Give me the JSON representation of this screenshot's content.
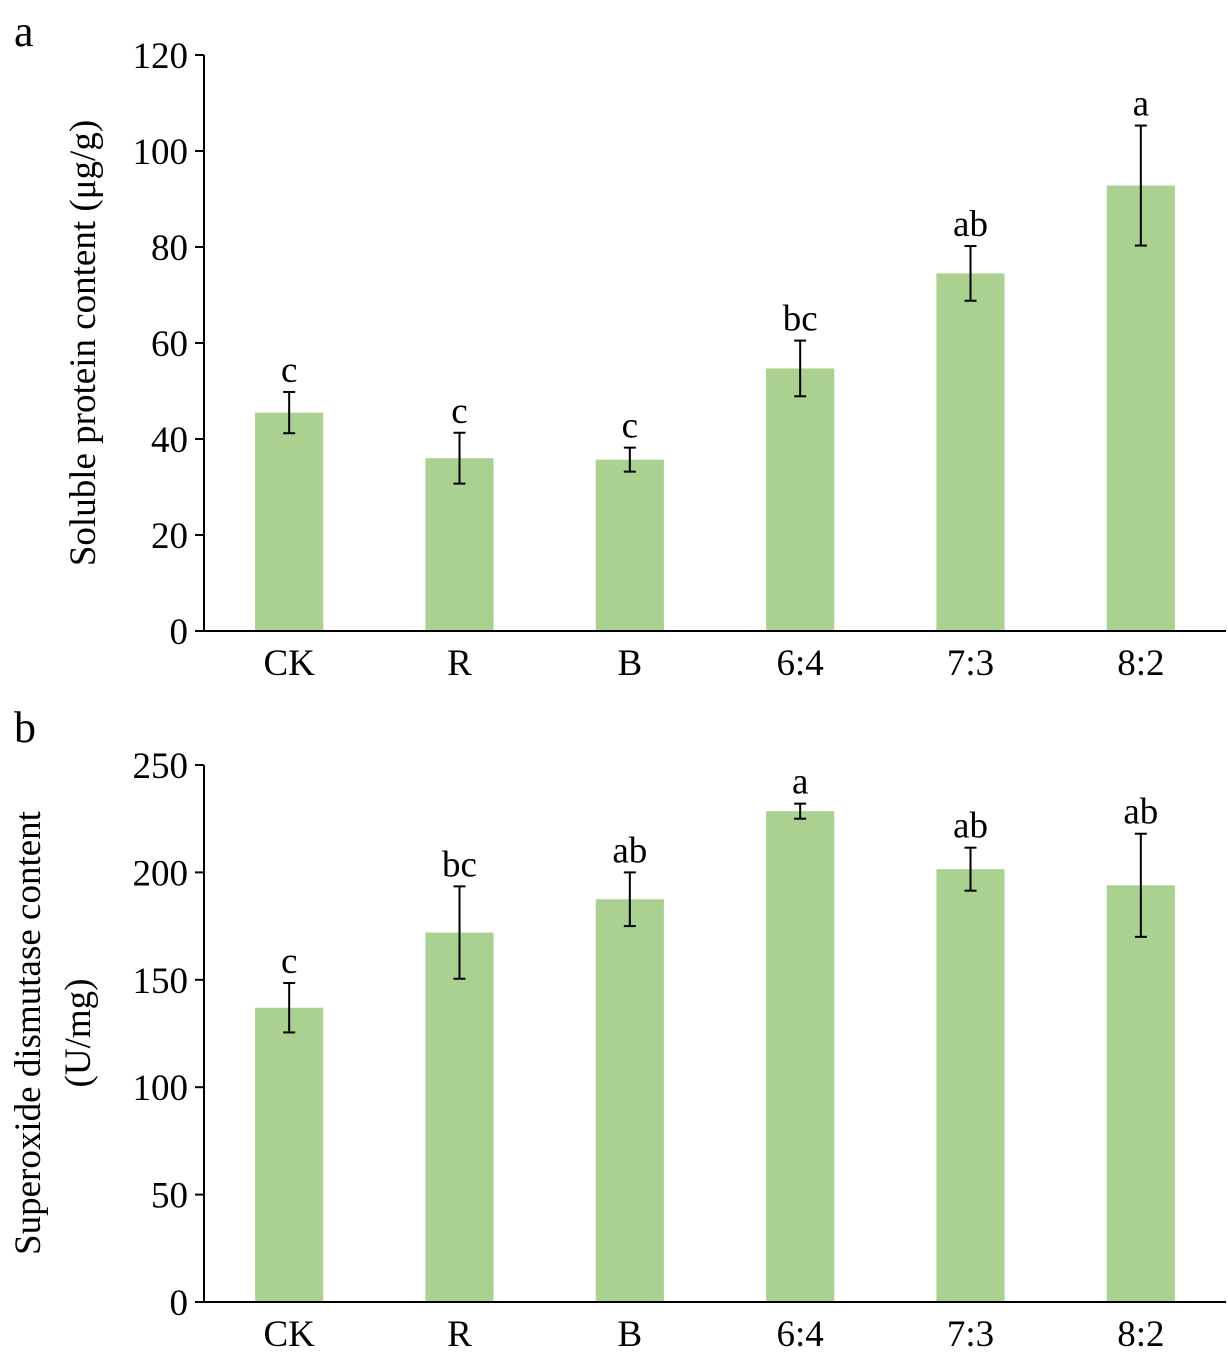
{
  "colors": {
    "bar": "#aad18f",
    "axis": "#000000",
    "error_bar": "#000000"
  },
  "chart_data": [
    {
      "panel_label": "a",
      "type": "bar",
      "title": "",
      "xlabel": "",
      "ylabel": "Soluble protein content (μg/g)",
      "ylim": [
        0,
        120
      ],
      "yticks": [
        0,
        20,
        40,
        60,
        80,
        100,
        120
      ],
      "categories": [
        "CK",
        "R",
        "B",
        "6:4",
        "7:3",
        "8:2"
      ],
      "values": [
        45.5,
        36.0,
        35.7,
        54.7,
        74.5,
        92.8
      ],
      "errors": [
        4.3,
        5.3,
        2.5,
        5.8,
        5.7,
        12.5
      ],
      "significance": [
        "c",
        "c",
        "c",
        "bc",
        "ab",
        "a"
      ]
    },
    {
      "panel_label": "b",
      "type": "bar",
      "title": "",
      "xlabel": "",
      "ylabel_lines": [
        "Superoxide dismutase content",
        "(U/mg)"
      ],
      "ylim": [
        0,
        250
      ],
      "yticks": [
        0,
        50,
        100,
        150,
        200,
        250
      ],
      "categories": [
        "CK",
        "R",
        "B",
        "6:4",
        "7:3",
        "8:2"
      ],
      "values": [
        137.0,
        172.0,
        187.5,
        228.5,
        201.5,
        194.0
      ],
      "errors": [
        11.5,
        21.5,
        12.5,
        3.5,
        10.0,
        24.0
      ],
      "significance": [
        "c",
        "bc",
        "ab",
        "a",
        "ab",
        "ab"
      ]
    }
  ]
}
